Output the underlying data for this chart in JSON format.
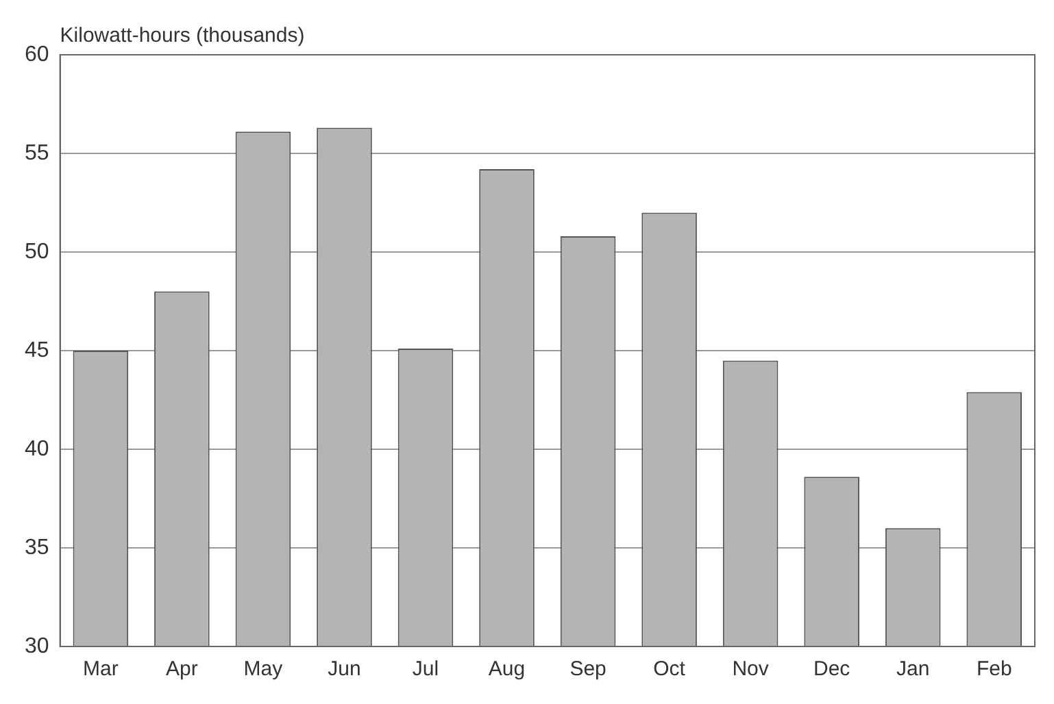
{
  "chart_data": {
    "type": "bar",
    "ylabel": "Kilowatt-hours (thousands)",
    "categories": [
      "Mar",
      "Apr",
      "May",
      "Jun",
      "Jul",
      "Aug",
      "Sep",
      "Oct",
      "Nov",
      "Dec",
      "Jan",
      "Feb"
    ],
    "values": [
      45.0,
      48.0,
      56.1,
      56.3,
      45.1,
      54.2,
      50.8,
      52.0,
      44.5,
      38.6,
      36.0,
      42.9
    ],
    "color": "#b4b4b4",
    "ylim": [
      30,
      60
    ],
    "yticks": [
      30,
      35,
      40,
      45,
      50,
      55,
      60
    ],
    "grid": "y"
  }
}
